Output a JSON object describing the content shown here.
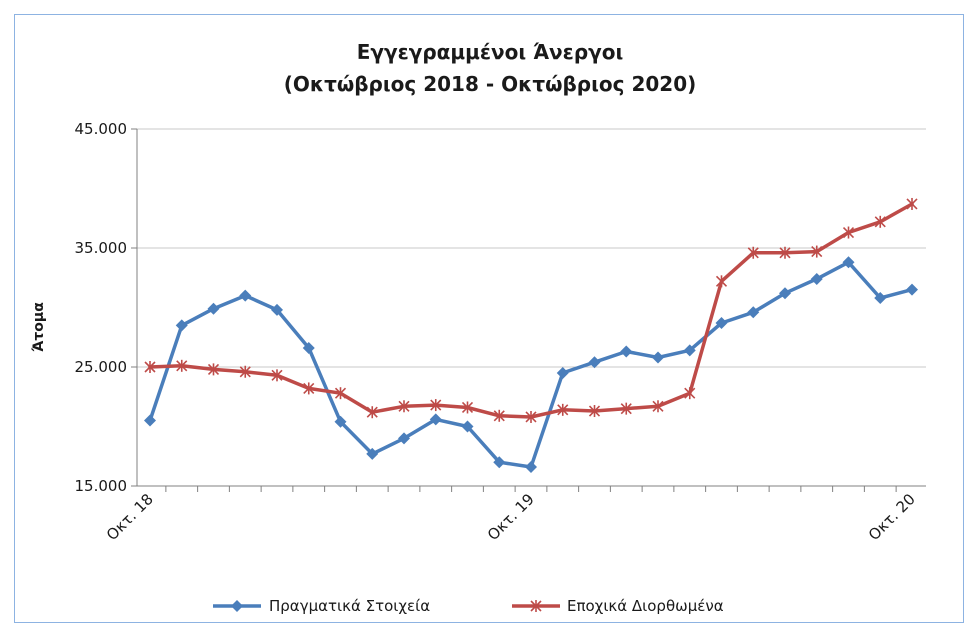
{
  "chart_data": {
    "type": "line",
    "title": "Εγγεγραμμένοι Άνεργοι",
    "subtitle": "(Οκτώβριος 2018 - Οκτώβριος 2020)",
    "ylabel": "Άτομα",
    "xlabel": "",
    "ylim": [
      15000,
      45000
    ],
    "yticks": [
      15000,
      25000,
      35000,
      45000
    ],
    "ytick_labels": [
      "15.000",
      "25.000",
      "35.000",
      "45.000"
    ],
    "grid": true,
    "legend_position": "bottom",
    "x_tick_labels": [
      {
        "index": 0,
        "label": "Οκτ. 18"
      },
      {
        "index": 12,
        "label": "Οκτ. 19"
      },
      {
        "index": 24,
        "label": "Οκτ. 20"
      }
    ],
    "colors": {
      "actual": "#4a7ebb",
      "seasonal": "#be4b48",
      "grid": "#c8c8c8",
      "axis": "#808080"
    },
    "series": [
      {
        "name": "Πραγματικά Στοιχεία",
        "key": "actual",
        "marker": "diamond",
        "values": [
          20500,
          28500,
          29900,
          31000,
          29800,
          26600,
          20400,
          17700,
          19000,
          20600,
          20000,
          17000,
          16600,
          24500,
          25400,
          26300,
          25800,
          26400,
          28700,
          29600,
          31200,
          32400,
          33800,
          30800,
          31500
        ]
      },
      {
        "name": "Εποχικά Διορθωμένα",
        "key": "seasonal",
        "marker": "star",
        "values": [
          25000,
          25100,
          24800,
          24600,
          24300,
          23200,
          22800,
          21200,
          21700,
          21800,
          21600,
          20900,
          20800,
          21400,
          21300,
          21500,
          21700,
          22800,
          32200,
          34600,
          34600,
          34700,
          36300,
          37200,
          38700
        ]
      }
    ]
  }
}
